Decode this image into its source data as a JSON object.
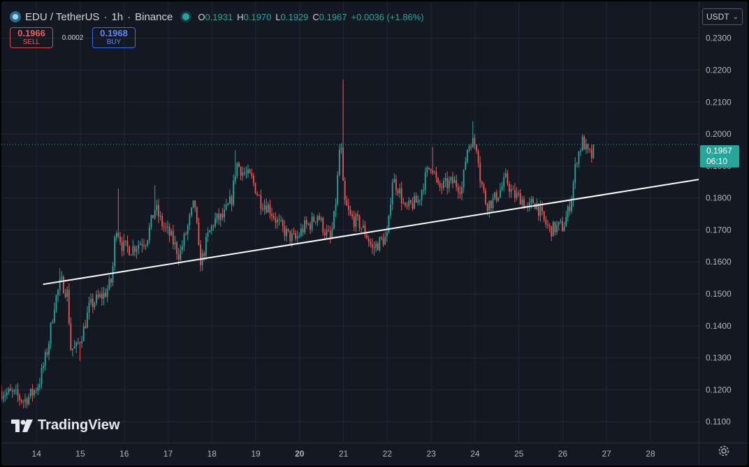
{
  "legend": {
    "symbol": "EDU / TetherUS",
    "interval": "1h",
    "exchange": "Binance",
    "open_label": "O",
    "open": "0.1931",
    "high_label": "H",
    "high": "0.1970",
    "low_label": "L",
    "low": "0.1929",
    "close_label": "C",
    "close": "0.1967",
    "change": "+0.0036 (+1.86%)"
  },
  "trade": {
    "sell_price": "0.1966",
    "sell_label": "SELL",
    "spread": "0.0002",
    "buy_price": "0.1968",
    "buy_label": "BUY"
  },
  "currency": "USDT",
  "last_price": {
    "price": "0.1967",
    "countdown": "06:10"
  },
  "watermark": "TradingView",
  "colors": {
    "up": "#26a69a",
    "down": "#ef5350",
    "background": "#141823",
    "grid": "#232733",
    "trendline": "#ffffff"
  },
  "chart_data": {
    "type": "candlestick",
    "title": "",
    "x_unit": "day of month",
    "x_range": [
      13.2,
      29.1
    ],
    "ylim": [
      0.1035,
      0.2415
    ],
    "x_ticks": [
      {
        "x": 14,
        "label": "14"
      },
      {
        "x": 15,
        "label": "15"
      },
      {
        "x": 16,
        "label": "16"
      },
      {
        "x": 17,
        "label": "17"
      },
      {
        "x": 18,
        "label": "18"
      },
      {
        "x": 19,
        "label": "19"
      },
      {
        "x": 20,
        "label": "20",
        "bold": true
      },
      {
        "x": 21,
        "label": "21"
      },
      {
        "x": 22,
        "label": "22"
      },
      {
        "x": 23,
        "label": "23"
      },
      {
        "x": 24,
        "label": "24"
      },
      {
        "x": 25,
        "label": "25"
      },
      {
        "x": 26,
        "label": "26"
      },
      {
        "x": 27,
        "label": "27"
      },
      {
        "x": 28,
        "label": "28"
      }
    ],
    "y_ticks": [
      "0.1100",
      "0.1200",
      "0.1300",
      "0.1400",
      "0.1500",
      "0.1600",
      "0.1700",
      "0.1800",
      "0.1900",
      "0.2000",
      "0.2100",
      "0.2200",
      "0.2300"
    ],
    "grid": true,
    "last_price": 0.1967,
    "price_path": [
      [
        13.2,
        0.1195
      ],
      [
        13.55,
        0.1185
      ],
      [
        13.75,
        0.1165
      ],
      [
        13.95,
        0.119
      ],
      [
        14.1,
        0.122
      ],
      [
        14.3,
        0.133
      ],
      [
        14.45,
        0.147
      ],
      [
        14.6,
        0.154
      ],
      [
        14.75,
        0.15
      ],
      [
        14.82,
        0.133
      ],
      [
        14.95,
        0.133
      ],
      [
        15.1,
        0.138
      ],
      [
        15.25,
        0.146
      ],
      [
        15.4,
        0.148
      ],
      [
        15.6,
        0.15
      ],
      [
        15.75,
        0.154
      ],
      [
        15.8,
        0.161
      ],
      [
        15.85,
        0.172
      ],
      [
        16.0,
        0.165
      ],
      [
        16.2,
        0.164
      ],
      [
        16.4,
        0.166
      ],
      [
        16.55,
        0.167
      ],
      [
        16.75,
        0.177
      ],
      [
        16.9,
        0.172
      ],
      [
        17.1,
        0.168
      ],
      [
        17.3,
        0.162
      ],
      [
        17.45,
        0.169
      ],
      [
        17.65,
        0.179
      ],
      [
        17.75,
        0.162
      ],
      [
        17.8,
        0.16
      ],
      [
        17.95,
        0.168
      ],
      [
        18.1,
        0.173
      ],
      [
        18.3,
        0.174
      ],
      [
        18.5,
        0.18
      ],
      [
        18.6,
        0.191
      ],
      [
        18.75,
        0.188
      ],
      [
        18.95,
        0.186
      ],
      [
        19.15,
        0.179
      ],
      [
        19.35,
        0.177
      ],
      [
        19.55,
        0.172
      ],
      [
        19.8,
        0.168
      ],
      [
        19.95,
        0.167
      ],
      [
        20.15,
        0.171
      ],
      [
        20.3,
        0.172
      ],
      [
        20.45,
        0.175
      ],
      [
        20.6,
        0.17
      ],
      [
        20.75,
        0.167
      ],
      [
        20.85,
        0.176
      ],
      [
        20.93,
        0.19
      ],
      [
        20.97,
        0.2
      ],
      [
        21.05,
        0.179
      ],
      [
        21.2,
        0.174
      ],
      [
        21.4,
        0.172
      ],
      [
        21.55,
        0.169
      ],
      [
        21.7,
        0.164
      ],
      [
        21.85,
        0.166
      ],
      [
        22.05,
        0.168
      ],
      [
        22.15,
        0.186
      ],
      [
        22.3,
        0.183
      ],
      [
        22.45,
        0.176
      ],
      [
        22.6,
        0.178
      ],
      [
        22.75,
        0.179
      ],
      [
        22.85,
        0.184
      ],
      [
        22.95,
        0.188
      ],
      [
        23.05,
        0.191
      ],
      [
        23.2,
        0.183
      ],
      [
        23.35,
        0.184
      ],
      [
        23.55,
        0.185
      ],
      [
        23.75,
        0.183
      ],
      [
        23.85,
        0.195
      ],
      [
        23.95,
        0.198
      ],
      [
        24.1,
        0.196
      ],
      [
        24.15,
        0.187
      ],
      [
        24.3,
        0.178
      ],
      [
        24.45,
        0.179
      ],
      [
        24.6,
        0.182
      ],
      [
        24.75,
        0.186
      ],
      [
        24.9,
        0.181
      ],
      [
        25.1,
        0.18
      ],
      [
        25.25,
        0.176
      ],
      [
        25.35,
        0.179
      ],
      [
        25.45,
        0.178
      ],
      [
        25.6,
        0.173
      ],
      [
        25.75,
        0.17
      ],
      [
        25.95,
        0.171
      ],
      [
        26.05,
        0.171
      ],
      [
        26.15,
        0.175
      ],
      [
        26.25,
        0.181
      ],
      [
        26.35,
        0.192
      ],
      [
        26.5,
        0.198
      ],
      [
        26.6,
        0.194
      ],
      [
        26.7,
        0.1931
      ]
    ],
    "spikes": [
      [
        14.55,
        0.158
      ],
      [
        15.0,
        0.129
      ],
      [
        15.85,
        0.183
      ],
      [
        16.7,
        0.184
      ],
      [
        17.75,
        0.157
      ],
      [
        18.55,
        0.195
      ],
      [
        20.98,
        0.217
      ],
      [
        21.7,
        0.162
      ],
      [
        23.05,
        0.196
      ],
      [
        23.95,
        0.204
      ],
      [
        26.5,
        0.1995
      ]
    ],
    "trendline": {
      "from": [
        14.15,
        0.153
      ],
      "to": [
        29.1,
        0.1858
      ]
    }
  }
}
